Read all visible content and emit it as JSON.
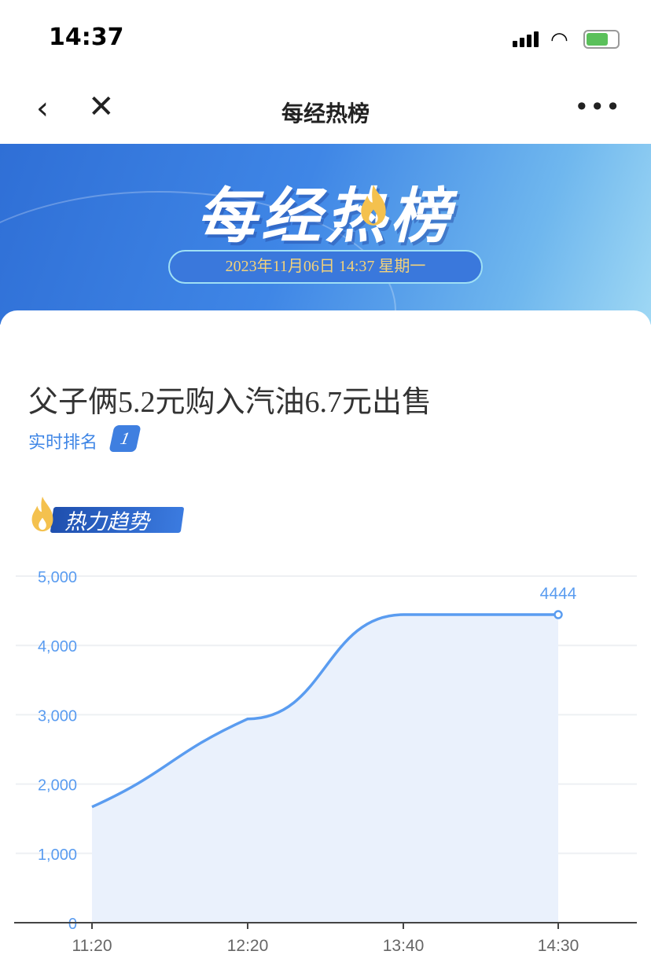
{
  "status": {
    "time": "14:37"
  },
  "nav": {
    "title": "每经热榜",
    "back_icon": "chevron-left-icon",
    "close_icon": "close-icon",
    "more_icon": "more-icon"
  },
  "banner": {
    "title": "每经热榜",
    "date": "2023年11月06日 14:37 星期一"
  },
  "article": {
    "headline": "父子俩5.2元购入汽油6.7元出售",
    "rank_label": "实时排名",
    "rank": "1"
  },
  "trend": {
    "label": "热力趋势"
  },
  "colors": {
    "accent": "#3f86e6",
    "line": "#5a9cf0",
    "area": "#eaf1fc",
    "flame": "#f4c14e"
  },
  "chart_data": {
    "type": "area",
    "categories": [
      "11:20",
      "12:20",
      "13:40",
      "14:30"
    ],
    "values": [
      1670,
      2940,
      4444,
      4444
    ],
    "ylim": [
      0,
      5000
    ],
    "yticks": [
      "0",
      "1,000",
      "2,000",
      "3,000",
      "4,000",
      "5,000"
    ],
    "last_label": "4444",
    "grid": true,
    "smooth": true
  }
}
